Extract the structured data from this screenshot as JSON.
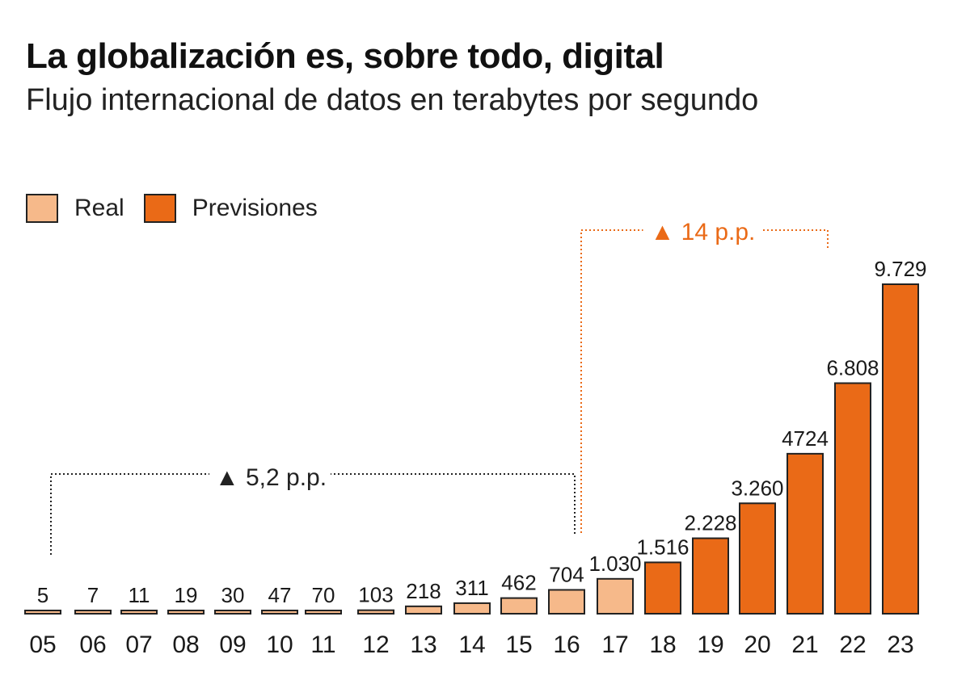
{
  "title": "La globalización es, sobre todo, digital",
  "subtitle": "Flujo internacional de datos en terabytes por segundo",
  "legend": [
    {
      "label": "Real",
      "color": "#f6b98a"
    },
    {
      "label": "Previsiones",
      "color": "#ea6a17"
    }
  ],
  "colors": {
    "real": "#f6b98a",
    "forecast": "#ea6a17",
    "outline": "#222222",
    "annotation_real": "#222222",
    "annotation_forecast": "#ea6a17"
  },
  "chart_data": {
    "type": "bar",
    "categories": [
      "05",
      "06",
      "07",
      "08",
      "09",
      "10",
      "11",
      "12",
      "13",
      "14",
      "15",
      "16",
      "17",
      "18",
      "19",
      "20",
      "21",
      "22",
      "23"
    ],
    "values": [
      5,
      7,
      11,
      19,
      30,
      47,
      70,
      103,
      218,
      311,
      462,
      704,
      1030,
      1516,
      2228,
      3260,
      4724,
      6808,
      9729
    ],
    "value_labels": [
      "5",
      "7",
      "11",
      "19",
      "30",
      "47",
      "70",
      "103",
      "218",
      "311",
      "462",
      "704",
      "1.030",
      "1.516",
      "2.228",
      "3.260",
      "4724",
      "6.808",
      "9.729"
    ],
    "series_type": [
      "Real",
      "Real",
      "Real",
      "Real",
      "Real",
      "Real",
      "Real",
      "Real",
      "Real",
      "Real",
      "Real",
      "Real",
      "Real",
      "Previsiones",
      "Previsiones",
      "Previsiones",
      "Previsiones",
      "Previsiones",
      "Previsiones"
    ],
    "ylim": [
      0,
      9729
    ],
    "grid": false,
    "legend_position": "top-left",
    "annotations": [
      {
        "text": "▲ 5,2 p.p.",
        "from": "05",
        "to": "16",
        "color": "#222222"
      },
      {
        "text": "▲ 14 p.p.",
        "from": "16",
        "to": "21",
        "color": "#ea6a17"
      }
    ]
  }
}
